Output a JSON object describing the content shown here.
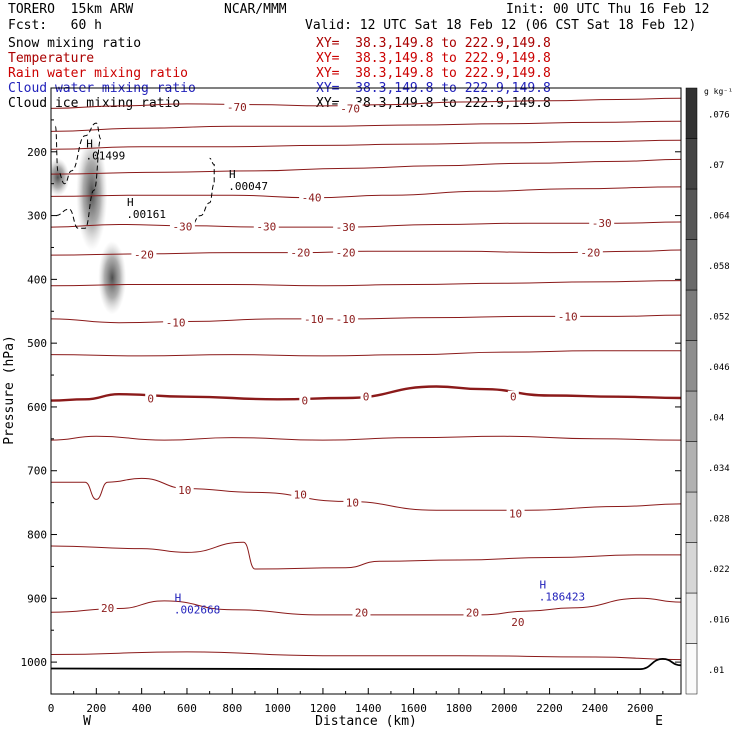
{
  "header": {
    "model": "TORERO  15km ARW",
    "source": "NCAR/MMM",
    "init": "Init: 00 UTC Thu 16 Feb 12",
    "fcst": "Fcst:   60 h",
    "valid": "Valid: 12 UTC Sat 18 Feb 12 (06 CST Sat 18 Feb 12)"
  },
  "fields": [
    {
      "name": "Snow mixing ratio",
      "color": "#000000",
      "xy": ""
    },
    {
      "name": "Temperature",
      "color": "#aa0000",
      "xy": "XY=  38.3,149.8 to 222.9,149.8"
    },
    {
      "name": "Rain water mixing ratio",
      "color": "#cc0000",
      "xy": "XY=  38.3,149.8 to 222.9,149.8"
    },
    {
      "name": "Cloud water mixing ratio",
      "color": "#2222bb",
      "xy": "XY=  38.3,149.8 to 222.9,149.8"
    },
    {
      "name": "Cloud ice mixing ratio",
      "color": "#000000",
      "xy": "XY=  38.3,149.8 to 222.9,149.8"
    }
  ],
  "colors": {
    "temperature": "#8b1a1a",
    "cloud_water": "#2222bb",
    "frame": "#000000"
  },
  "chart_data": {
    "type": "cross-section contour",
    "xlabel": "Distance (km)",
    "ylabel": "Pressure (hPa)",
    "xlim": [
      0,
      2780
    ],
    "ylim": [
      1050,
      100
    ],
    "xticks": [
      0,
      200,
      400,
      600,
      800,
      1000,
      1200,
      1400,
      1600,
      1800,
      2000,
      2200,
      2400,
      2600
    ],
    "yticks": [
      200,
      300,
      400,
      500,
      600,
      700,
      800,
      900,
      1000
    ],
    "end_labels": {
      "left": "W",
      "right": "E"
    },
    "colorbar": {
      "unit": "g kg⁻¹",
      "levels": [
        0.01,
        0.016,
        0.022,
        0.028,
        0.034,
        0.04,
        0.046,
        0.052,
        0.058,
        0.064,
        0.07,
        0.076
      ],
      "labels": [
        ".01",
        ".016",
        ".022",
        ".028",
        ".034",
        ".04",
        ".046",
        ".052",
        ".058",
        ".064",
        ".07",
        ".076"
      ]
    },
    "temperature_labels": [
      {
        "text": "-70",
        "x": 820,
        "p": 130
      },
      {
        "text": "-70",
        "x": 1320,
        "p": 132
      },
      {
        "text": "-40",
        "x": 1150,
        "p": 272
      },
      {
        "text": "-30",
        "x": 580,
        "p": 317
      },
      {
        "text": "-30",
        "x": 950,
        "p": 317
      },
      {
        "text": "-30",
        "x": 1300,
        "p": 318
      },
      {
        "text": "-30",
        "x": 2430,
        "p": 312
      },
      {
        "text": "-20",
        "x": 410,
        "p": 361
      },
      {
        "text": "-20",
        "x": 1100,
        "p": 358
      },
      {
        "text": "-20",
        "x": 1300,
        "p": 358
      },
      {
        "text": "-20",
        "x": 2380,
        "p": 358
      },
      {
        "text": "-10",
        "x": 550,
        "p": 468
      },
      {
        "text": "-10",
        "x": 1160,
        "p": 462
      },
      {
        "text": "-10",
        "x": 1300,
        "p": 462
      },
      {
        "text": "-10",
        "x": 2280,
        "p": 458
      },
      {
        "text": "0",
        "x": 440,
        "p": 587
      },
      {
        "text": "0",
        "x": 1120,
        "p": 590
      },
      {
        "text": "0",
        "x": 1390,
        "p": 584
      },
      {
        "text": "0",
        "x": 2040,
        "p": 584
      },
      {
        "text": "10",
        "x": 590,
        "p": 730
      },
      {
        "text": "10",
        "x": 1100,
        "p": 737
      },
      {
        "text": "10",
        "x": 1330,
        "p": 750
      },
      {
        "text": "10",
        "x": 2050,
        "p": 767
      },
      {
        "text": "20",
        "x": 250,
        "p": 915
      },
      {
        "text": "20",
        "x": 1370,
        "p": 922
      },
      {
        "text": "20",
        "x": 1860,
        "p": 922
      },
      {
        "text": "20",
        "x": 2060,
        "p": 937
      }
    ],
    "temperature_isotherms": [
      {
        "level": "-70",
        "points": [
          [
            0,
            132
          ],
          [
            300,
            128
          ],
          [
            600,
            125
          ],
          [
            900,
            126
          ],
          [
            1200,
            128
          ],
          [
            1500,
            126
          ],
          [
            1800,
            122
          ],
          [
            2200,
            120
          ],
          [
            2500,
            118
          ],
          [
            2780,
            116
          ]
        ]
      },
      {
        "level": "-60",
        "points": [
          [
            0,
            168
          ],
          [
            400,
            163
          ],
          [
            800,
            160
          ],
          [
            1200,
            160
          ],
          [
            1600,
            158
          ],
          [
            2000,
            156
          ],
          [
            2400,
            154
          ],
          [
            2780,
            152
          ]
        ]
      },
      {
        "level": "-55",
        "points": [
          [
            0,
            196
          ],
          [
            400,
            192
          ],
          [
            800,
            192
          ],
          [
            1200,
            190
          ],
          [
            1600,
            188
          ],
          [
            2000,
            186
          ],
          [
            2400,
            184
          ],
          [
            2780,
            182
          ]
        ]
      },
      {
        "level": "-50",
        "points": [
          [
            0,
            235
          ],
          [
            500,
            232
          ],
          [
            900,
            230
          ],
          [
            1300,
            226
          ],
          [
            1700,
            222
          ],
          [
            2100,
            218
          ],
          [
            2500,
            215
          ],
          [
            2780,
            212
          ]
        ]
      },
      {
        "level": "-40",
        "points": [
          [
            0,
            270
          ],
          [
            400,
            268
          ],
          [
            800,
            268
          ],
          [
            1150,
            272
          ],
          [
            1500,
            268
          ],
          [
            1900,
            262
          ],
          [
            2300,
            258
          ],
          [
            2780,
            255
          ]
        ]
      },
      {
        "level": "-30",
        "points": [
          [
            0,
            318
          ],
          [
            300,
            314
          ],
          [
            600,
            316
          ],
          [
            950,
            318
          ],
          [
            1300,
            318
          ],
          [
            1700,
            314
          ],
          [
            2100,
            312
          ],
          [
            2500,
            312
          ],
          [
            2780,
            310
          ]
        ]
      },
      {
        "level": "-20",
        "points": [
          [
            0,
            362
          ],
          [
            400,
            360
          ],
          [
            800,
            358
          ],
          [
            1100,
            358
          ],
          [
            1400,
            356
          ],
          [
            1800,
            356
          ],
          [
            2200,
            358
          ],
          [
            2600,
            356
          ],
          [
            2780,
            354
          ]
        ]
      },
      {
        "level": "-15",
        "points": [
          [
            0,
            410
          ],
          [
            400,
            408
          ],
          [
            800,
            408
          ],
          [
            1200,
            410
          ],
          [
            1600,
            408
          ],
          [
            2000,
            406
          ],
          [
            2400,
            404
          ],
          [
            2780,
            402
          ]
        ]
      },
      {
        "level": "-10",
        "points": [
          [
            0,
            462
          ],
          [
            300,
            468
          ],
          [
            600,
            466
          ],
          [
            1000,
            462
          ],
          [
            1300,
            462
          ],
          [
            1700,
            460
          ],
          [
            2100,
            458
          ],
          [
            2500,
            458
          ],
          [
            2780,
            456
          ]
        ]
      },
      {
        "level": "-5",
        "points": [
          [
            0,
            518
          ],
          [
            400,
            520
          ],
          [
            800,
            518
          ],
          [
            1200,
            520
          ],
          [
            1600,
            518
          ],
          [
            2000,
            514
          ],
          [
            2400,
            512
          ],
          [
            2780,
            512
          ]
        ]
      },
      {
        "level": "0",
        "points": [
          [
            0,
            590
          ],
          [
            150,
            588
          ],
          [
            300,
            580
          ],
          [
            600,
            584
          ],
          [
            1000,
            588
          ],
          [
            1300,
            586
          ],
          [
            1700,
            568
          ],
          [
            1900,
            572
          ],
          [
            2200,
            582
          ],
          [
            2500,
            584
          ],
          [
            2780,
            586
          ]
        ]
      },
      {
        "level": "5",
        "points": [
          [
            0,
            652
          ],
          [
            200,
            646
          ],
          [
            500,
            652
          ],
          [
            800,
            648
          ],
          [
            1200,
            652
          ],
          [
            1600,
            648
          ],
          [
            2000,
            646
          ],
          [
            2400,
            650
          ],
          [
            2780,
            652
          ]
        ]
      },
      {
        "level": "10",
        "points": [
          [
            0,
            718
          ],
          [
            150,
            718
          ],
          [
            200,
            745
          ],
          [
            250,
            718
          ],
          [
            400,
            712
          ],
          [
            600,
            728
          ],
          [
            900,
            734
          ],
          [
            1300,
            748
          ],
          [
            1700,
            762
          ],
          [
            2100,
            762
          ],
          [
            2500,
            756
          ],
          [
            2780,
            752
          ]
        ]
      },
      {
        "level": "15",
        "points": [
          [
            0,
            818
          ],
          [
            400,
            822
          ],
          [
            600,
            828
          ],
          [
            850,
            812
          ],
          [
            900,
            854
          ],
          [
            1300,
            852
          ],
          [
            1450,
            842
          ],
          [
            1800,
            840
          ],
          [
            2200,
            836
          ],
          [
            2600,
            832
          ],
          [
            2780,
            832
          ]
        ]
      },
      {
        "level": "20",
        "points": [
          [
            0,
            922
          ],
          [
            300,
            916
          ],
          [
            500,
            904
          ],
          [
            800,
            918
          ],
          [
            1200,
            926
          ],
          [
            1600,
            926
          ],
          [
            1900,
            926
          ],
          [
            2100,
            920
          ],
          [
            2300,
            915
          ],
          [
            2600,
            900
          ],
          [
            2780,
            906
          ]
        ]
      },
      {
        "level": "25",
        "points": [
          [
            0,
            988
          ],
          [
            600,
            984
          ],
          [
            1200,
            990
          ],
          [
            1800,
            990
          ],
          [
            2400,
            992
          ],
          [
            2780,
            996
          ]
        ]
      }
    ],
    "cloud_water_highs": [
      {
        "label": "H",
        "value": ".002668",
        "x": 560,
        "p": 905
      },
      {
        "label": "H",
        "value": ".186423",
        "x": 2170,
        "p": 885
      }
    ],
    "cloud_ice_highs": [
      {
        "label": "H",
        "value": ".01499",
        "x": 170,
        "p": 193
      },
      {
        "label": "H",
        "value": ".00161",
        "x": 350,
        "p": 285
      },
      {
        "label": "H",
        "value": ".00047",
        "x": 800,
        "p": 241
      }
    ],
    "snow_cores": [
      {
        "x": 180,
        "p_top": 175,
        "p_bot": 355,
        "max": 0.07
      },
      {
        "x": 270,
        "p_top": 340,
        "p_bot": 455,
        "max": 0.05
      },
      {
        "x": 30,
        "p_top": 210,
        "p_bot": 270,
        "max": 0.02
      }
    ],
    "surface_pressure": [
      [
        0,
        1010
      ],
      [
        1200,
        1011
      ],
      [
        2600,
        1011
      ],
      [
        2700,
        995
      ],
      [
        2780,
        1005
      ]
    ]
  }
}
